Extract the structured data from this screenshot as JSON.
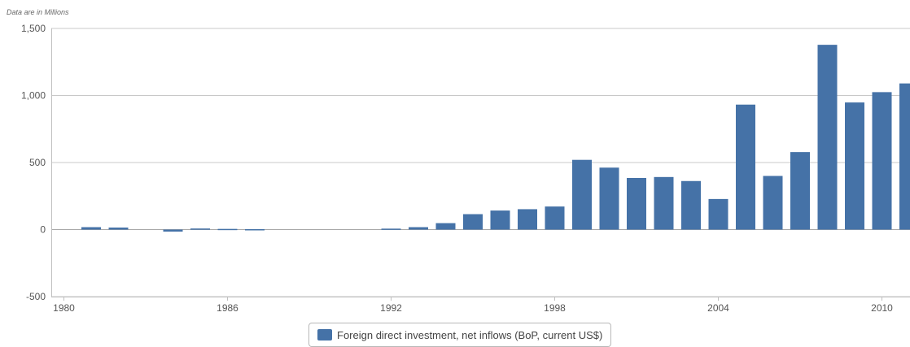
{
  "unit_note": "Data are in Millions",
  "chart_data": {
    "type": "bar",
    "x": [
      1981,
      1982,
      1983,
      1984,
      1985,
      1986,
      1987,
      1988,
      1989,
      1990,
      1991,
      1992,
      1993,
      1994,
      1995,
      1996,
      1997,
      1998,
      1999,
      2000,
      2001,
      2002,
      2003,
      2004,
      2005,
      2006,
      2007,
      2008,
      2009,
      2010,
      2011
    ],
    "series": [
      {
        "name": "Foreign direct investment, net inflows (BoP, current US$)",
        "color": "#4572a7",
        "values": [
          18,
          15,
          0,
          -15,
          8,
          5,
          3,
          0,
          0,
          0,
          0,
          7,
          18,
          48,
          115,
          142,
          152,
          172,
          520,
          462,
          385,
          392,
          362,
          228,
          932,
          400,
          578,
          1378,
          948,
          1025,
          1090
        ]
      }
    ],
    "ylim": [
      -500,
      1500
    ],
    "yticks": [
      "-500",
      "0",
      "500",
      "1,000",
      "1,500"
    ],
    "ytick_values": [
      -500,
      0,
      500,
      1000,
      1500
    ],
    "xticks": [
      "1980",
      "1986",
      "1992",
      "1998",
      "2004",
      "2010"
    ],
    "xtick_values": [
      1980,
      1986,
      1992,
      1998,
      2004,
      2010
    ],
    "grid": true,
    "legend": "bottom-center"
  }
}
